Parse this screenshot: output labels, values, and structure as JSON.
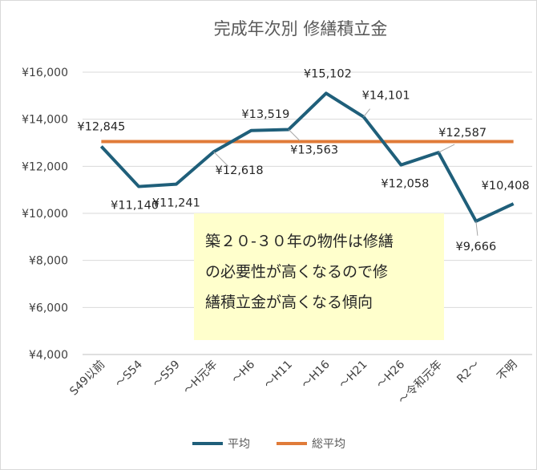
{
  "chart_data": {
    "type": "line",
    "title": "完成年次別 修繕積立金",
    "categories": [
      "S49以前",
      "～S54",
      "～S59",
      "～H元年",
      "～H6",
      "～H11",
      "～H16",
      "～H21",
      "～H26",
      "～令和元年",
      "R2～",
      "不明"
    ],
    "series": [
      {
        "name": "平均",
        "color": "#1f5f7a",
        "values": [
          12845,
          11140,
          11241,
          12618,
          13519,
          13563,
          15102,
          14101,
          12058,
          12587,
          9666,
          10408
        ],
        "labels": [
          "¥12,845",
          "¥11,140",
          "¥11,241",
          "¥12,618",
          "¥13,519",
          "¥13,563",
          "¥15,102",
          "¥14,101",
          "¥12,058",
          "¥12,587",
          "¥9,666",
          "¥10,408"
        ]
      },
      {
        "name": "総平均",
        "color": "#e07b39",
        "values": [
          13050,
          13050,
          13050,
          13050,
          13050,
          13050,
          13050,
          13050,
          13050,
          13050,
          13050,
          13050
        ]
      }
    ],
    "ylim": [
      4000,
      16000
    ],
    "yticks": [
      4000,
      6000,
      8000,
      10000,
      12000,
      14000,
      16000
    ],
    "ytick_labels": [
      "¥4,000",
      "¥6,000",
      "¥8,000",
      "¥10,000",
      "¥12,000",
      "¥14,000",
      "¥16,000"
    ],
    "grid": true,
    "legend": "bottom"
  },
  "annotation": {
    "lines": [
      "築２０-３０年の物件は修繕",
      "の必要性が高くなるので修",
      "繕積立金が高くなる傾向"
    ]
  }
}
